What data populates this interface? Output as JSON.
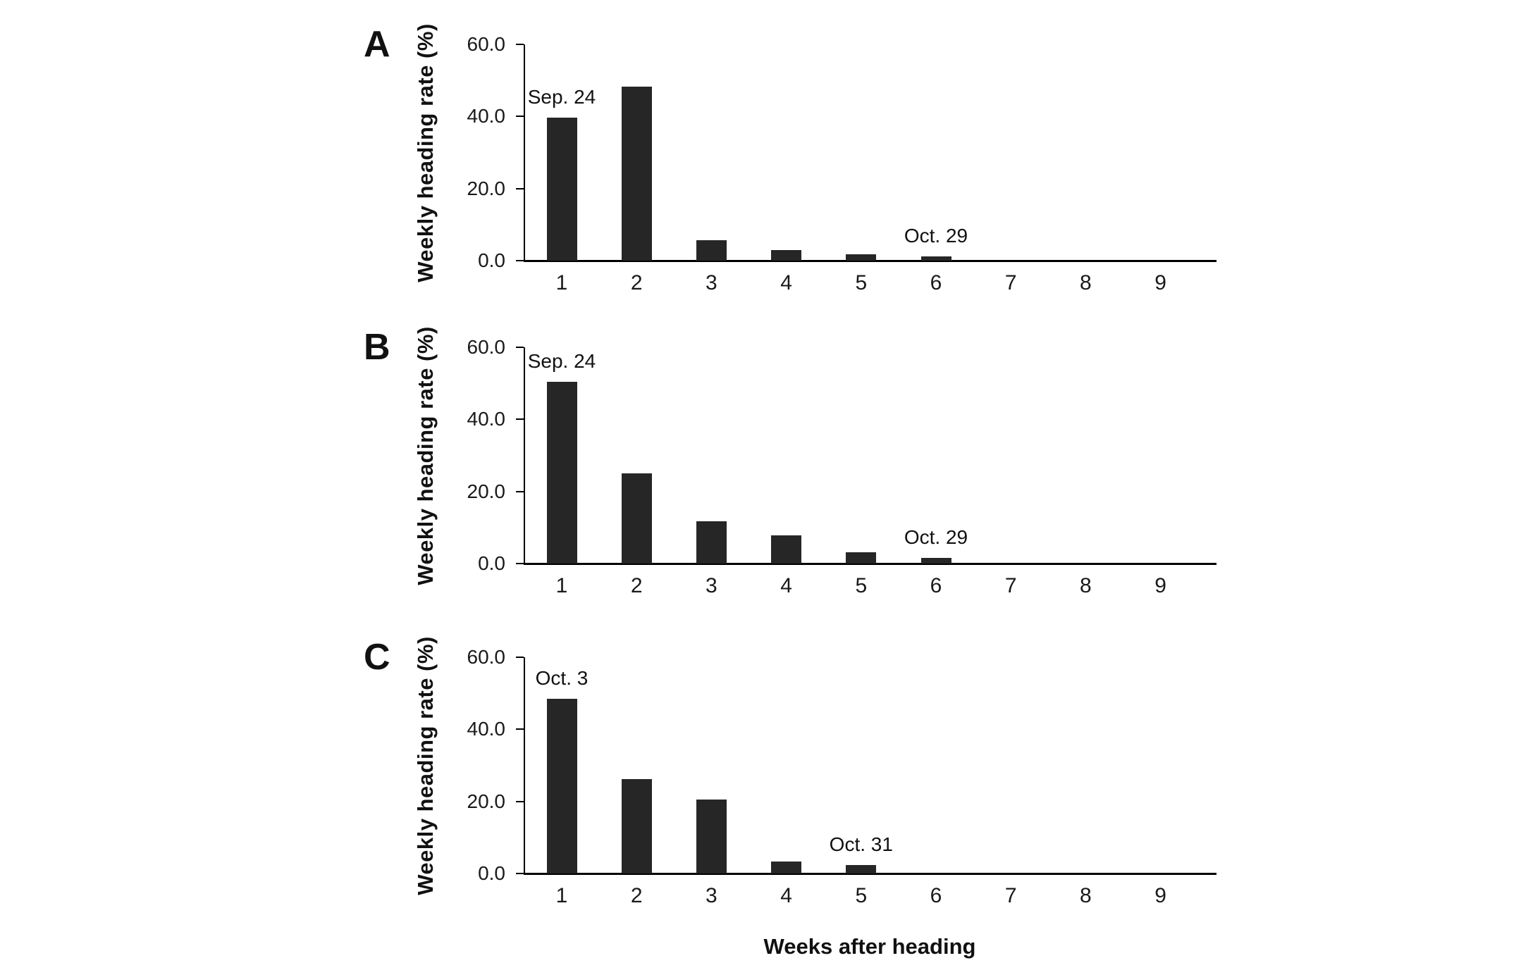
{
  "figure": {
    "xlabel": "Weeks after heading",
    "background_color": "#ffffff",
    "bar_color": "#262626",
    "axis_color": "#000000",
    "text_color": "#111111"
  },
  "chart_data": [
    {
      "type": "bar",
      "panel_label": "A",
      "title": "",
      "ylabel": "Weekly heading rate (%)",
      "xlabel": "",
      "categories": [
        "1",
        "2",
        "3",
        "4",
        "5",
        "6",
        "7",
        "8",
        "9"
      ],
      "values": [
        39.7,
        48.3,
        5.6,
        3.0,
        1.8,
        1.2,
        0,
        0,
        0
      ],
      "ylim": [
        0,
        60
      ],
      "ytick_labels": [
        "0.0",
        "20.0",
        "40.0",
        "60.0"
      ],
      "ytick_values": [
        0,
        20,
        40,
        60
      ],
      "grid": false,
      "legend": "none",
      "annotations": [
        {
          "category": "1",
          "label": "Sep. 24"
        },
        {
          "category": "6",
          "label": "Oct. 29"
        }
      ]
    },
    {
      "type": "bar",
      "panel_label": "B",
      "title": "",
      "ylabel": "Weekly heading rate (%)",
      "xlabel": "",
      "categories": [
        "1",
        "2",
        "3",
        "4",
        "5",
        "6",
        "7",
        "8",
        "9"
      ],
      "values": [
        50.4,
        25.0,
        11.7,
        7.9,
        3.2,
        1.5,
        0,
        0,
        0
      ],
      "ylim": [
        0,
        60
      ],
      "ytick_labels": [
        "0.0",
        "20.0",
        "40.0",
        "60.0"
      ],
      "ytick_values": [
        0,
        20,
        40,
        60
      ],
      "grid": false,
      "legend": "none",
      "annotations": [
        {
          "category": "1",
          "label": "Sep. 24"
        },
        {
          "category": "6",
          "label": "Oct. 29"
        }
      ]
    },
    {
      "type": "bar",
      "panel_label": "C",
      "title": "",
      "ylabel": "Weekly heading rate (%)",
      "xlabel": "Weeks after heading",
      "categories": [
        "1",
        "2",
        "3",
        "4",
        "5",
        "6",
        "7",
        "8",
        "9"
      ],
      "values": [
        48.4,
        26.2,
        20.6,
        3.4,
        2.3,
        0,
        0,
        0,
        0
      ],
      "ylim": [
        0,
        60
      ],
      "ytick_labels": [
        "0.0",
        "20.0",
        "40.0",
        "60.0"
      ],
      "ytick_values": [
        0,
        20,
        40,
        60
      ],
      "grid": false,
      "legend": "none",
      "annotations": [
        {
          "category": "1",
          "label": "Oct. 3"
        },
        {
          "category": "5",
          "label": "Oct. 31"
        }
      ]
    }
  ]
}
